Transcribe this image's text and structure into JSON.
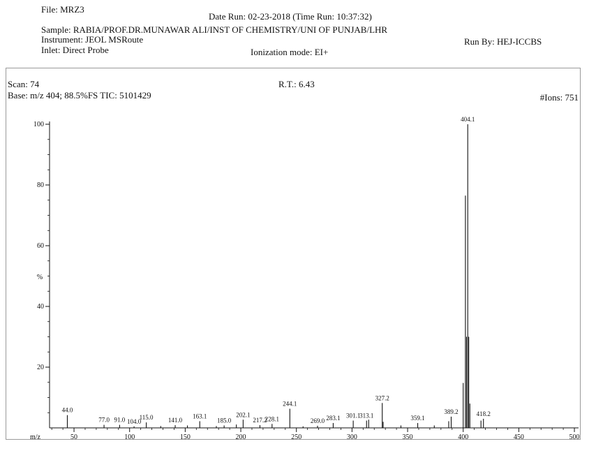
{
  "header": {
    "file": "File: MRZ3",
    "date_run": "Date Run: 02-23-2018 (Time Run: 10:37:32)",
    "sample": "Sample: RABIA/PROF.DR.MUNAWAR ALI/INST OF CHEMISTRY/UNI OF PUNJAB/LHR",
    "instrument": "Instrument: JEOL MSRoute",
    "run_by": "Run By: HEJ-ICCBS",
    "inlet": "Inlet: Direct Probe",
    "ionization": "Ionization mode: EI+"
  },
  "info": {
    "scan": "Scan: 74",
    "base": "Base: m/z 404; 88.5%FS  TIC: 5101429",
    "rt": "R.T.: 6.43",
    "ions": "#Ions: 751"
  },
  "colors": {
    "ink": "#111111",
    "frame": "#9a9a9a"
  },
  "chart_data": {
    "type": "bar",
    "xlabel": "m/z",
    "ylabel": "%",
    "xlim": [
      28,
      505
    ],
    "ylim": [
      0,
      100
    ],
    "x_ticks": [
      50,
      100,
      150,
      200,
      250,
      300,
      350,
      400,
      450,
      500
    ],
    "y_ticks": [
      20,
      40,
      60,
      80,
      100
    ],
    "peaks": [
      {
        "x": 44.0,
        "y": 4.2,
        "label": "44.0"
      },
      {
        "x": 77.0,
        "y": 1.0,
        "label": "77.0"
      },
      {
        "x": 91.0,
        "y": 1.0,
        "label": "91.0"
      },
      {
        "x": 104.0,
        "y": 0.5,
        "label": "104.0"
      },
      {
        "x": 115.0,
        "y": 1.8,
        "label": "115.0"
      },
      {
        "x": 128.0,
        "y": 0.6
      },
      {
        "x": 141.0,
        "y": 0.9,
        "label": "141.0"
      },
      {
        "x": 152.0,
        "y": 0.8
      },
      {
        "x": 163.1,
        "y": 2.2,
        "label": "163.1"
      },
      {
        "x": 178.0,
        "y": 0.6
      },
      {
        "x": 185.0,
        "y": 0.8,
        "label": "185.0"
      },
      {
        "x": 196.0,
        "y": 1.1
      },
      {
        "x": 202.1,
        "y": 2.7,
        "label": "202.1"
      },
      {
        "x": 217.2,
        "y": 0.9,
        "label": "217.2"
      },
      {
        "x": 228.1,
        "y": 1.3,
        "label": "228.1"
      },
      {
        "x": 244.1,
        "y": 6.3,
        "label": "244.1"
      },
      {
        "x": 256.0,
        "y": 0.5
      },
      {
        "x": 269.0,
        "y": 0.7,
        "label": "269.0"
      },
      {
        "x": 283.1,
        "y": 1.6,
        "label": "283.1"
      },
      {
        "x": 301.1,
        "y": 2.4,
        "label": "301.1"
      },
      {
        "x": 313.1,
        "y": 2.4,
        "label": "313.1"
      },
      {
        "x": 315.0,
        "y": 2.7
      },
      {
        "x": 327.2,
        "y": 8.2,
        "label": "327.2"
      },
      {
        "x": 328.0,
        "y": 2.0
      },
      {
        "x": 344.0,
        "y": 0.8
      },
      {
        "x": 359.1,
        "y": 1.6,
        "label": "359.1"
      },
      {
        "x": 374.0,
        "y": 0.8
      },
      {
        "x": 387.0,
        "y": 2.2
      },
      {
        "x": 389.2,
        "y": 3.7,
        "label": "389.2"
      },
      {
        "x": 400.0,
        "y": 14.8
      },
      {
        "x": 402.0,
        "y": 76.5
      },
      {
        "x": 403.0,
        "y": 30.0
      },
      {
        "x": 404.1,
        "y": 100,
        "label": "404.1"
      },
      {
        "x": 405.0,
        "y": 30.0
      },
      {
        "x": 406.0,
        "y": 8.0
      },
      {
        "x": 416.0,
        "y": 2.4
      },
      {
        "x": 418.2,
        "y": 3.0,
        "label": "418.2"
      }
    ]
  }
}
